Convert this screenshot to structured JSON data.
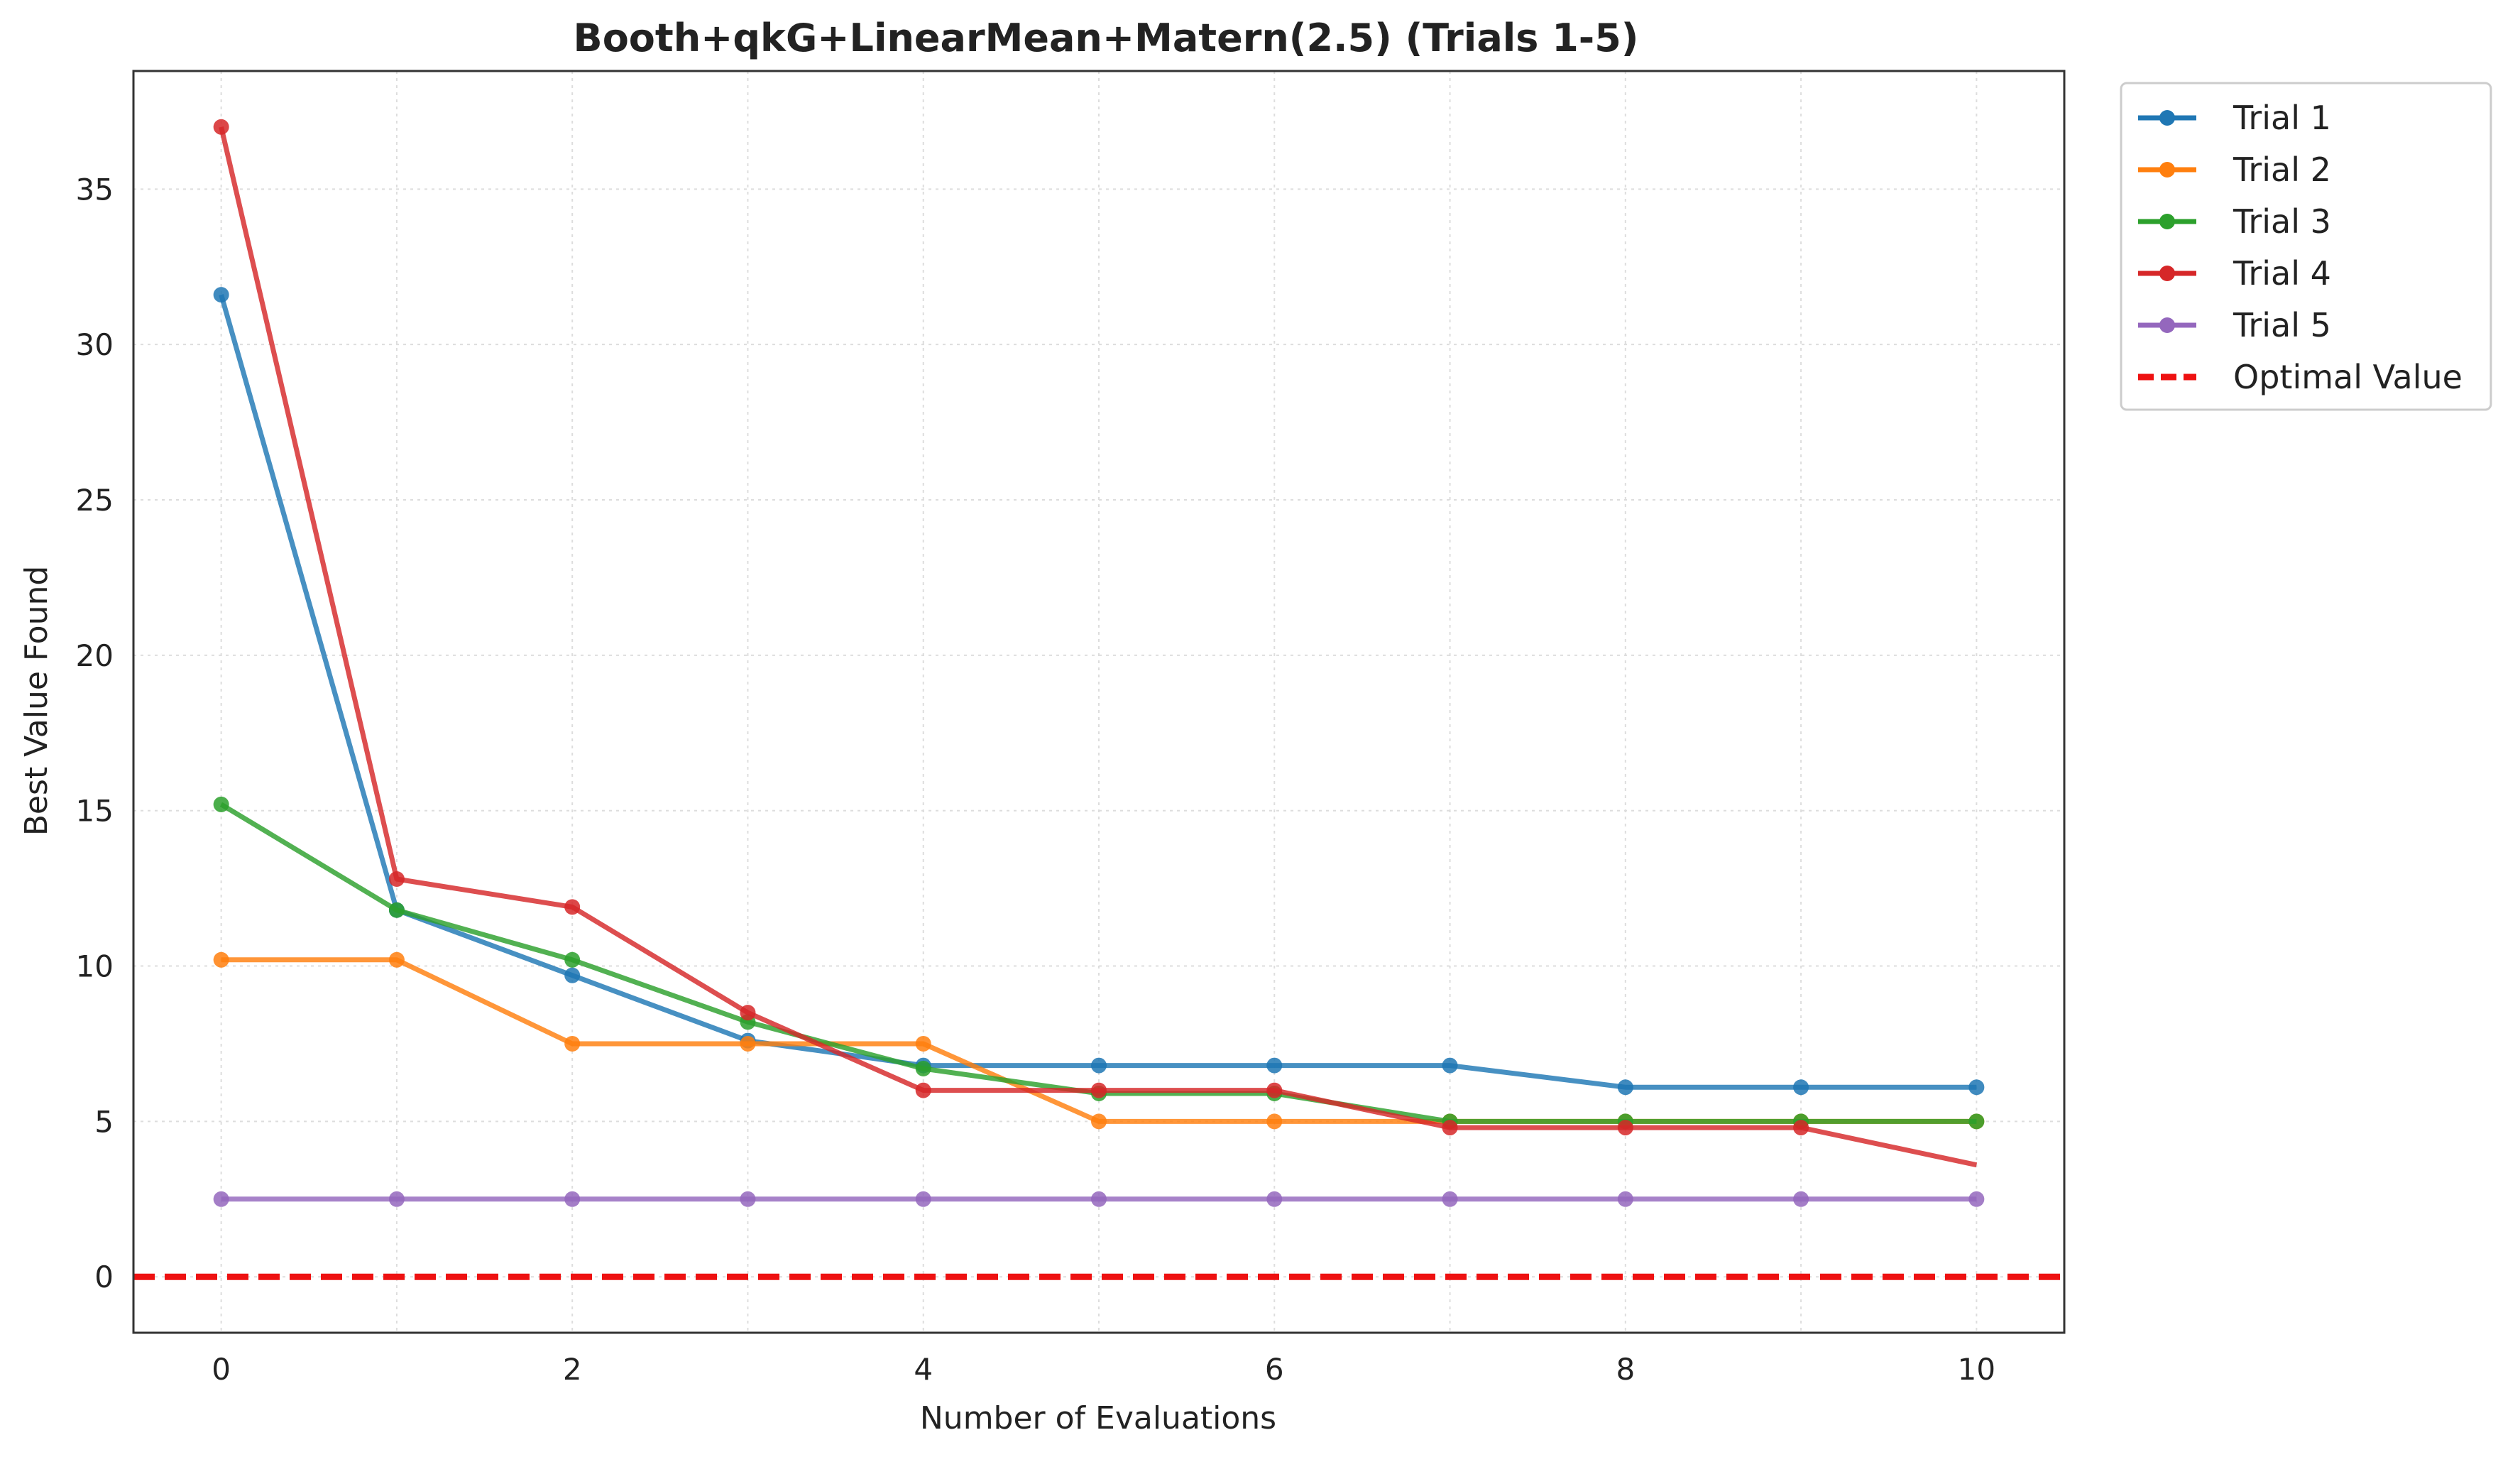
{
  "chart_data": {
    "type": "line",
    "title": "Booth+qkG+LinearMean+Matern(2.5) (Trials 1-5)",
    "xlabel": "Number of Evaluations",
    "ylabel": "Best Value Found",
    "xlim": [
      -0.5,
      10.5
    ],
    "ylim": [
      -1.8,
      38.8
    ],
    "xticks": [
      0,
      2,
      4,
      6,
      8,
      10
    ],
    "yticks": [
      0,
      5,
      10,
      15,
      20,
      25,
      30,
      35
    ],
    "grid": true,
    "legend_position": "outside-top-right",
    "x": [
      0,
      1,
      2,
      3,
      4,
      5,
      6,
      7,
      8,
      9,
      10
    ],
    "series": [
      {
        "name": "Trial 1",
        "color": "#1f77b4",
        "marker": true,
        "values": [
          31.6,
          11.8,
          9.7,
          7.6,
          6.8,
          6.8,
          6.8,
          6.8,
          6.1,
          6.1,
          6.1
        ]
      },
      {
        "name": "Trial 2",
        "color": "#ff7f0e",
        "marker": true,
        "values": [
          10.2,
          10.2,
          7.5,
          7.5,
          7.5,
          5.0,
          5.0,
          5.0,
          5.0,
          5.0,
          5.0
        ]
      },
      {
        "name": "Trial 3",
        "color": "#2ca02c",
        "marker": true,
        "values": [
          15.2,
          11.8,
          10.2,
          8.2,
          6.7,
          5.9,
          5.9,
          5.0,
          5.0,
          5.0,
          5.0
        ]
      },
      {
        "name": "Trial 4",
        "color": "#d62728",
        "marker": true,
        "values": [
          37.0,
          12.8,
          11.9,
          8.5,
          6.0,
          6.0,
          6.0,
          4.8,
          4.8,
          4.8,
          3.6
        ],
        "unmarked_last": true
      },
      {
        "name": "Trial 5",
        "color": "#9467bd",
        "marker": true,
        "values": [
          2.5,
          2.5,
          2.5,
          2.5,
          2.5,
          2.5,
          2.5,
          2.5,
          2.5,
          2.5,
          2.5
        ]
      }
    ],
    "reference_line": {
      "name": "Optimal Value",
      "y": 0,
      "color": "#ee1111",
      "style": "dashed"
    }
  }
}
